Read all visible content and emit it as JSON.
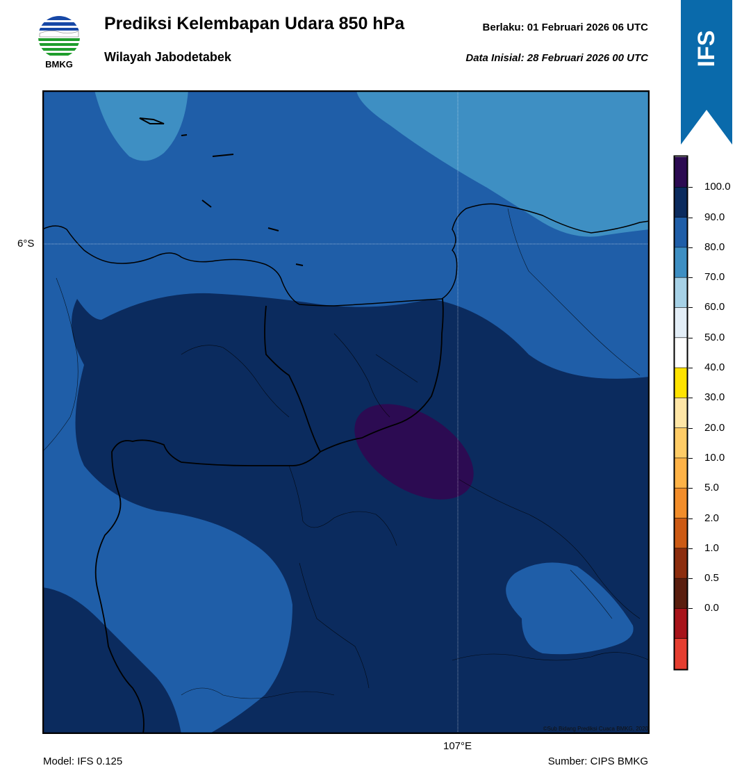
{
  "header": {
    "title": "Prediksi Kelembapan Udara 850 hPa",
    "subtitle": "Wilayah Jabodetabek",
    "valid_label": "Berlaku:  01 Februari 2026 06 UTC",
    "init_label": "Data Inisial:  28 Februari 2026 00 UTC"
  },
  "logo": {
    "text": "BMKG",
    "icon": "bmkg-logo-icon"
  },
  "ribbon": {
    "text": "IFS",
    "color": "#0a6aab"
  },
  "map": {
    "lat_label": "6°S",
    "lon_label": "107°E",
    "copyright": "©Sub Bidang Prediksi Cuaca BMKG, 2020"
  },
  "footer": {
    "model": "Model: IFS 0.125",
    "source": "Sumber: CIPS BMKG"
  },
  "colorbar": {
    "labels": [
      "100.0",
      "90.0",
      "80.0",
      "70.0",
      "60.0",
      "50.0",
      "40.0",
      "30.0",
      "20.0",
      "10.0",
      "5.0",
      "2.0",
      "1.0",
      "0.5",
      "0.0"
    ],
    "colors": [
      "#2c0b52",
      "#0b2b5e",
      "#1f5ea8",
      "#3e8fc3",
      "#a6d1e6",
      "#e3eef7",
      "#ffffff",
      "#ffe300",
      "#ffe6a6",
      "#ffcc66",
      "#ffb347",
      "#f28d2a",
      "#cc5a14",
      "#8c2d0e",
      "#5a1e0f",
      "#a8141a",
      "#e53e30"
    ]
  }
}
